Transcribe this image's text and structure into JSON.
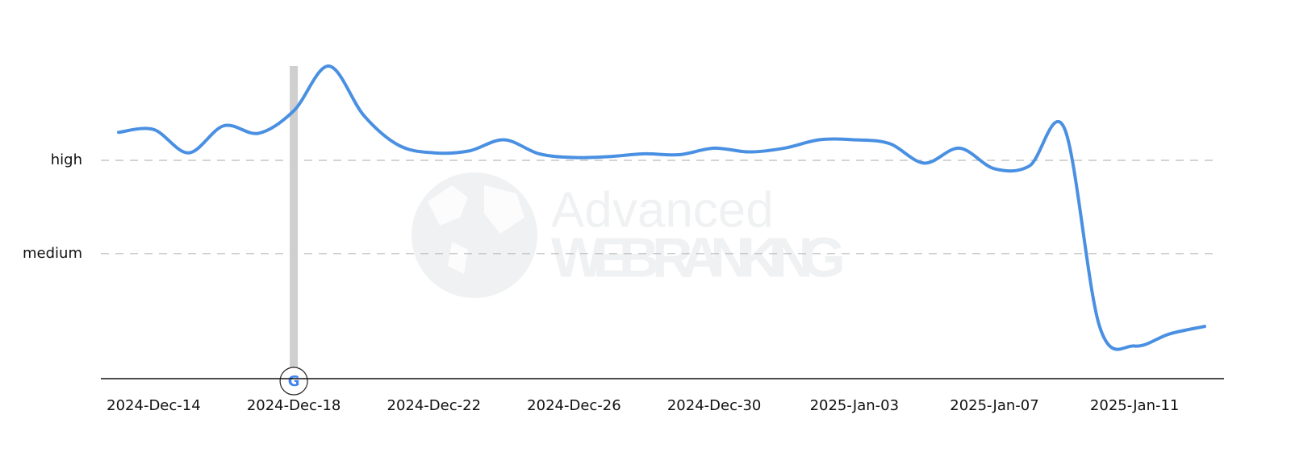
{
  "chart_data": {
    "type": "line",
    "watermark": [
      "Advanced",
      "WEB RANKING"
    ],
    "x": [
      "2024-Dec-13",
      "2024-Dec-14",
      "2024-Dec-15",
      "2024-Dec-16",
      "2024-Dec-17",
      "2024-Dec-18",
      "2024-Dec-19",
      "2024-Dec-20",
      "2024-Dec-21",
      "2024-Dec-22",
      "2024-Dec-23",
      "2024-Dec-24",
      "2024-Dec-25",
      "2024-Dec-26",
      "2024-Dec-27",
      "2024-Dec-28",
      "2024-Dec-29",
      "2024-Dec-30",
      "2024-Dec-31",
      "2025-Jan-01",
      "2025-Jan-02",
      "2025-Jan-03",
      "2025-Jan-04",
      "2025-Jan-05",
      "2025-Jan-06",
      "2025-Jan-07",
      "2025-Jan-08",
      "2025-Jan-09",
      "2025-Jan-10",
      "2025-Jan-11",
      "2025-Jan-12",
      "2025-Jan-13"
    ],
    "values": [
      2.3,
      2.33,
      2.08,
      2.37,
      2.29,
      2.53,
      3.01,
      2.48,
      2.16,
      2.08,
      2.1,
      2.22,
      2.07,
      2.03,
      2.04,
      2.07,
      2.06,
      2.13,
      2.09,
      2.13,
      2.22,
      2.22,
      2.18,
      1.97,
      2.13,
      1.91,
      1.94,
      2.34,
      0.22,
      0.01,
      0.14,
      0.22
    ],
    "color": "#4a90e2",
    "xticks": [
      "2024-Dec-14",
      "2024-Dec-18",
      "2024-Dec-22",
      "2024-Dec-26",
      "2024-Dec-30",
      "2025-Jan-03",
      "2025-Jan-07",
      "2025-Jan-11"
    ],
    "markers": [
      "2024-Dec-18"
    ],
    "ylim": [
      -0.34,
      3.2
    ],
    "yticks": [
      {
        "value": 1,
        "label": "medium"
      },
      {
        "value": 2,
        "label": "high"
      }
    ],
    "grid": true
  }
}
